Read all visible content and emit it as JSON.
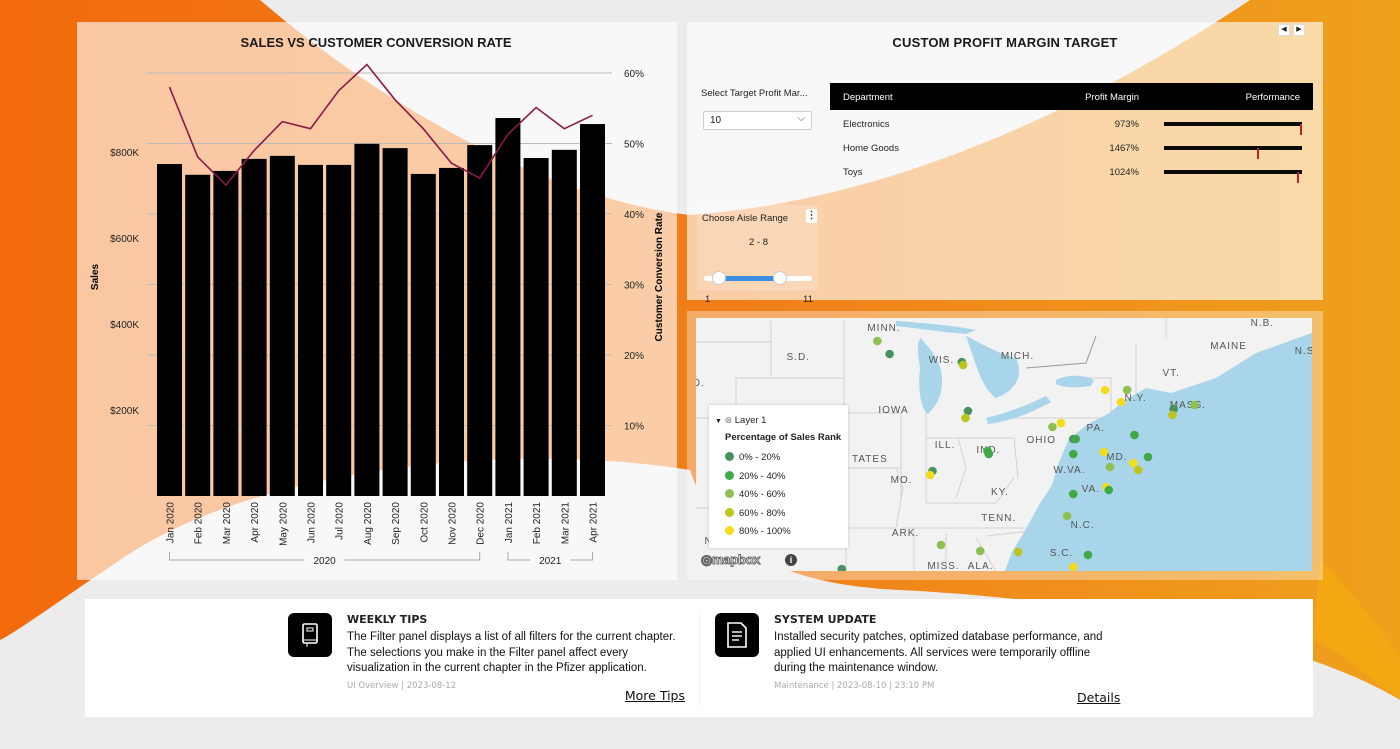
{
  "colors": {
    "orange": "#f26a0c",
    "bar": "#000000",
    "line": "#8b1a4a",
    "slider": "#3b8fe0",
    "ocean": "#a8d5ea",
    "marker": "#c0202a"
  },
  "sales_chart": {
    "chart_data": {
      "type": "bar+line",
      "title": "SALES VS CUSTOMER CONVERSION RATE",
      "ylabel": "Sales",
      "y2label": "Customer Conversion Rate",
      "categories": [
        "Jan 2020",
        "Feb 2020",
        "Mar 2020",
        "Apr 2020",
        "May 2020",
        "Jun 2020",
        "Jul 2020",
        "Aug 2020",
        "Sep 2020",
        "Oct 2020",
        "Nov 2020",
        "Dec 2020",
        "Jan 2021",
        "Feb 2021",
        "Mar 2021",
        "Apr 2021"
      ],
      "groups": [
        {
          "label": "2020",
          "from": 0,
          "to": 11
        },
        {
          "label": "2021",
          "from": 12,
          "to": 15
        }
      ],
      "series": [
        {
          "type": "bar",
          "axis": "left",
          "values": [
            772000,
            747000,
            756000,
            784000,
            791000,
            770000,
            770000,
            819000,
            809000,
            749000,
            763000,
            816000,
            879000,
            786000,
            805000,
            865000
          ]
        },
        {
          "type": "line",
          "axis": "right",
          "values": [
            58.0,
            48.1,
            44.1,
            49.0,
            53.1,
            52.1,
            57.5,
            61.2,
            56.2,
            52.1,
            47.2,
            45.1,
            51.3,
            55.1,
            52.1,
            54.0
          ]
        }
      ],
      "y_ticks": [
        {
          "v": 200000,
          "label": "$200K"
        },
        {
          "v": 400000,
          "label": "$400K"
        },
        {
          "v": 600000,
          "label": "$600K"
        },
        {
          "v": 800000,
          "label": "$800K"
        }
      ],
      "y2_ticks": [
        {
          "v": 10,
          "label": "10%"
        },
        {
          "v": 20,
          "label": "20%"
        },
        {
          "v": 30,
          "label": "30%"
        },
        {
          "v": 40,
          "label": "40%"
        },
        {
          "v": 50,
          "label": "50%"
        },
        {
          "v": 60,
          "label": "60%"
        }
      ],
      "ylim": [
        0,
        1100000
      ],
      "y2lim": [
        0,
        67
      ],
      "grid": true
    }
  },
  "profit": {
    "title": "CUSTOM PROFIT MARGIN TARGET",
    "select_label": "Select Target Profit Mar...",
    "select_value": "10",
    "columns": [
      "Department",
      "Profit Margin",
      "Performance"
    ],
    "rows": [
      {
        "department": "Electronics",
        "profit_margin": "973%",
        "target_marker": 0.99
      },
      {
        "department": "Home Goods",
        "profit_margin": "1467%",
        "target_marker": 0.68
      },
      {
        "department": "Toys",
        "profit_margin": "1024%",
        "target_marker": 0.97
      }
    ],
    "aisle": {
      "label": "Choose Aisle Range",
      "range_text": "2 - 8",
      "min": 1,
      "max": 11,
      "low": 2,
      "high": 8,
      "min_label": "1",
      "max_label": "11"
    }
  },
  "map": {
    "labels": [
      "MINN.",
      "S.D.",
      "WIS.",
      "MICH.",
      "IOWA",
      "ILL.",
      "IND.",
      "OHIO",
      "PA.",
      "N.Y.",
      "VT.",
      "MASS.",
      "MAINE",
      "N.B.",
      "N.S",
      "MD.",
      "W.VA.",
      "VA.",
      "KY.",
      "MO.",
      "TATES",
      "TENN.",
      "N.C.",
      "ARK.",
      "S.C.",
      "MISS.",
      "ALA.",
      "O.",
      "N.M."
    ],
    "legend": {
      "layer": "Layer 1",
      "title": "Percentage of Sales Rank",
      "items": [
        {
          "label": "0% - 20%",
          "color": "#4a9162"
        },
        {
          "label": "20% - 40%",
          "color": "#3faa45"
        },
        {
          "label": "40% - 60%",
          "color": "#8cc152"
        },
        {
          "label": "60% - 80%",
          "color": "#bcc51b"
        },
        {
          "label": "80% - 100%",
          "color": "#f2dc1b"
        }
      ]
    },
    "attribution": "mapbox"
  },
  "bottom": {
    "tips": {
      "title": "WEEKLY TIPS",
      "body": "The Filter panel displays a list of all filters for the current chapter. The selections you make in the Filter panel affect every visualization in the current chapter in the Pfizer application.",
      "meta": "UI Overview | 2023-08-12",
      "link": "More Tips"
    },
    "update": {
      "title": "SYSTEM UPDATE",
      "body": "Installed security patches, optimized database performance, and applied UI enhancements. All services were temporarily offline during the maintenance window.",
      "meta": "Maintenance | 2023-08-10 | 23:10 PM",
      "link": "Details"
    }
  }
}
